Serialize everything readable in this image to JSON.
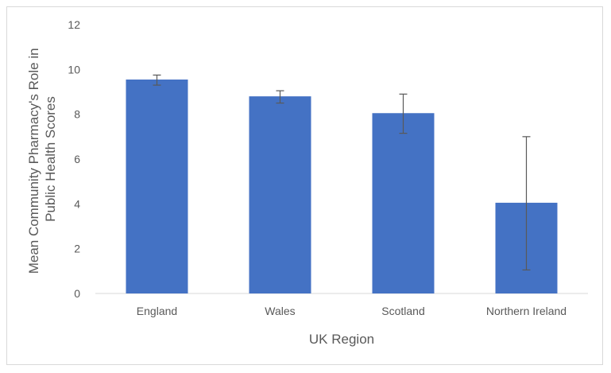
{
  "chart_data": {
    "type": "bar",
    "title": "",
    "xlabel": "UK Region",
    "ylabel_lines": [
      "Mean Community Pharmacy's Role in",
      "Public Health Scores"
    ],
    "categories": [
      "England",
      "Wales",
      "Scotland",
      "Northern Ireland"
    ],
    "values": [
      9.55,
      8.8,
      8.05,
      4.05
    ],
    "error_bars": {
      "upper": [
        9.75,
        9.05,
        8.9,
        7.0
      ],
      "lower": [
        9.3,
        8.5,
        7.15,
        1.05
      ]
    },
    "ylim": [
      0,
      12
    ],
    "yticks": [
      0,
      2,
      4,
      6,
      8,
      10,
      12
    ],
    "grid": false,
    "legend": "none",
    "colors": {
      "bar": "#4472c4",
      "error_bar": "#595959",
      "axis_line": "#d9d9d9",
      "text": "#595959"
    }
  }
}
